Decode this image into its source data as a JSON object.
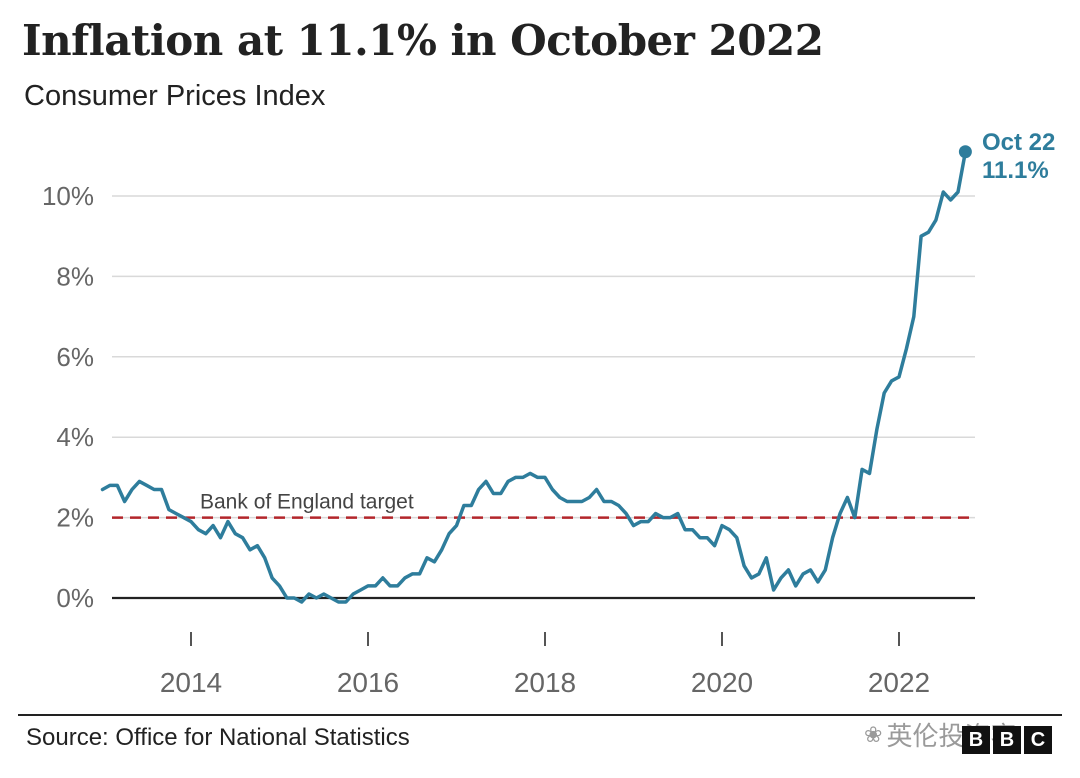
{
  "title": "Inflation at 11.1% in October 2022",
  "subtitle": "Consumer Prices Index",
  "source": "Source: Office for National Statistics",
  "watermark": "英伦投资客",
  "brand": [
    "B",
    "B",
    "C"
  ],
  "colors": {
    "line": "#2e7d9c",
    "target": "#b3262b",
    "grid": "#d9d9d9",
    "zero": "#222222"
  },
  "chart_data": {
    "type": "line",
    "title": "Inflation at 11.1% in October 2022",
    "subtitle": "Consumer Prices Index",
    "ylim": [
      -0.3,
      11.2
    ],
    "y_ticks": [
      0,
      2,
      4,
      6,
      8,
      10
    ],
    "y_tick_labels": [
      "0%",
      "2%",
      "4%",
      "6%",
      "8%",
      "10%"
    ],
    "x_ticks": [
      2014,
      2016,
      2018,
      2020,
      2022
    ],
    "x_tick_labels": [
      "2014",
      "2016",
      "2018",
      "2020",
      "2022"
    ],
    "grid": true,
    "reference_line": {
      "value": 2,
      "label": "Bank of England target"
    },
    "end_label": {
      "date": "Oct 22",
      "value": "11.1%"
    },
    "series": [
      {
        "start": "2013-01",
        "values": [
          2.7,
          2.8,
          2.8,
          2.4,
          2.7,
          2.9,
          2.8,
          2.7,
          2.7,
          2.2,
          2.1,
          2.0,
          1.9,
          1.7,
          1.6,
          1.8,
          1.5,
          1.9,
          1.6,
          1.5,
          1.2,
          1.3,
          1.0,
          0.5,
          0.3,
          0.0,
          0.0,
          -0.1,
          0.1,
          0.0,
          0.1,
          0.0,
          -0.1,
          -0.1,
          0.1,
          0.2,
          0.3,
          0.3,
          0.5,
          0.3,
          0.3,
          0.5,
          0.6,
          0.6,
          1.0,
          0.9,
          1.2,
          1.6,
          1.8,
          2.3,
          2.3,
          2.7,
          2.9,
          2.6,
          2.6,
          2.9,
          3.0,
          3.0,
          3.1,
          3.0,
          3.0,
          2.7,
          2.5,
          2.4,
          2.4,
          2.4,
          2.5,
          2.7,
          2.4,
          2.4,
          2.3,
          2.1,
          1.8,
          1.9,
          1.9,
          2.1,
          2.0,
          2.0,
          2.1,
          1.7,
          1.7,
          1.5,
          1.5,
          1.3,
          1.8,
          1.7,
          1.5,
          0.8,
          0.5,
          0.6,
          1.0,
          0.2,
          0.5,
          0.7,
          0.3,
          0.6,
          0.7,
          0.4,
          0.7,
          1.5,
          2.1,
          2.5,
          2.0,
          3.2,
          3.1,
          4.2,
          5.1,
          5.4,
          5.5,
          6.2,
          7.0,
          9.0,
          9.1,
          9.4,
          10.1,
          9.9,
          10.1,
          11.1
        ]
      }
    ]
  }
}
